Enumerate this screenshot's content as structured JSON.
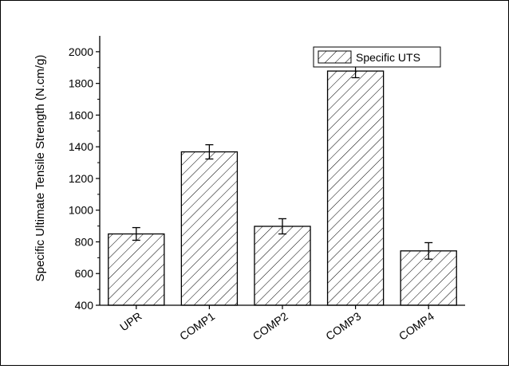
{
  "chart_data": {
    "type": "bar",
    "categories": [
      "UPR",
      "COMP1",
      "COMP2",
      "COMP3",
      "COMP4"
    ],
    "series": [
      {
        "name": "Specific UTS",
        "values": [
          850,
          1368,
          898,
          1878,
          743
        ],
        "errors": [
          40,
          45,
          48,
          42,
          52
        ]
      }
    ],
    "xlabel": "",
    "ylabel": "Specific Ultimate Tensile Strength (N.cm/g)",
    "ylim": [
      400,
      2100
    ],
    "yticks": [
      400,
      600,
      800,
      1000,
      1200,
      1400,
      1600,
      1800,
      2000
    ],
    "bar_fill": "hatched",
    "grid": false,
    "legend_position": "top-right"
  }
}
